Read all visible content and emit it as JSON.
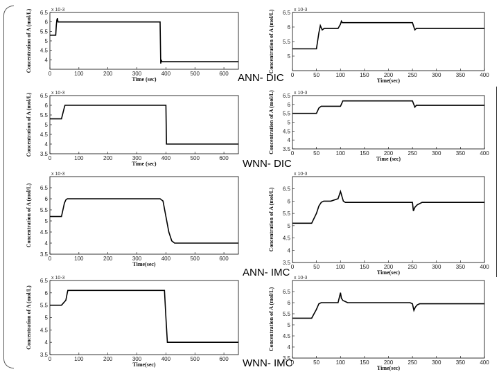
{
  "row_labels": [
    "ANN- DIC",
    "WNN- DIC",
    "ANN- IMC",
    "WNN- IMC"
  ],
  "chart_data": [
    {
      "type": "line",
      "ylabel": "Concentration of A (mol/L)",
      "xlabel": "Time (sec)",
      "multiplier": "x 10-3",
      "xlim": [
        0,
        650
      ],
      "ylim": [
        3.5,
        6.5
      ],
      "xticks": [
        0,
        100,
        200,
        300,
        400,
        500,
        600
      ],
      "yticks": [
        4,
        4.5,
        5,
        5.5,
        6,
        6.5
      ],
      "series": [
        {
          "x": [
            0,
            20,
            22,
            24,
            26,
            28,
            30,
            32,
            380,
            382,
            384,
            386,
            390,
            650
          ],
          "y": [
            5.3,
            5.3,
            5.8,
            6.1,
            6.2,
            6.0,
            6.0,
            6.0,
            6.0,
            3.8,
            4.0,
            3.9,
            3.9,
            3.9
          ]
        }
      ]
    },
    {
      "type": "line",
      "ylabel": "Concentration of A (mol/L)",
      "xlabel": "Time(sec)",
      "multiplier": "x 10-3",
      "xlim": [
        0,
        400
      ],
      "ylim": [
        4.5,
        6.5
      ],
      "xticks": [
        0,
        50,
        100,
        150,
        200,
        250,
        300,
        350,
        400
      ],
      "yticks": [
        5,
        5.5,
        6,
        6.5
      ],
      "series": [
        {
          "x": [
            0,
            50,
            55,
            58,
            62,
            66,
            80,
            95,
            100,
            102,
            104,
            106,
            110,
            250,
            255,
            258,
            262,
            400
          ],
          "y": [
            5.25,
            5.25,
            5.8,
            6.05,
            5.9,
            5.95,
            5.95,
            5.95,
            6.1,
            6.2,
            6.15,
            6.15,
            6.15,
            6.15,
            5.9,
            5.95,
            5.95,
            5.95
          ]
        }
      ]
    },
    {
      "type": "line",
      "ylabel": "Concentration of A (mol/L)",
      "xlabel": "Time (sec)",
      "multiplier": "x 10-3",
      "xlim": [
        0,
        650
      ],
      "ylim": [
        3.5,
        6.5
      ],
      "xticks": [
        0,
        100,
        200,
        300,
        400,
        500,
        600
      ],
      "yticks": [
        3.5,
        4,
        4.5,
        5,
        5.5,
        6,
        6.5
      ],
      "series": [
        {
          "x": [
            0,
            40,
            50,
            52,
            400,
            402,
            650
          ],
          "y": [
            5.3,
            5.3,
            5.9,
            6.0,
            6.0,
            4.0,
            4.0
          ]
        }
      ]
    },
    {
      "type": "line",
      "ylabel": "Concentration of A (mol/L)",
      "xlabel": "Time (sec)",
      "multiplier": "x 10-3",
      "xlim": [
        0,
        400
      ],
      "ylim": [
        3.5,
        6.5
      ],
      "xticks": [
        0,
        50,
        100,
        150,
        200,
        250,
        300,
        350,
        400
      ],
      "yticks": [
        3.5,
        4,
        4.5,
        5,
        5.5,
        6,
        6.5
      ],
      "series": [
        {
          "x": [
            0,
            50,
            55,
            60,
            100,
            105,
            110,
            250,
            255,
            258,
            400
          ],
          "y": [
            5.5,
            5.5,
            5.8,
            5.9,
            5.9,
            6.2,
            6.2,
            6.2,
            5.85,
            5.95,
            5.95
          ]
        }
      ]
    },
    {
      "type": "line",
      "ylabel": "Concentration of A (mol/L)",
      "xlabel": "Time(sec)",
      "multiplier": "x 10-3",
      "xlim": [
        0,
        650
      ],
      "ylim": [
        3.5,
        7
      ],
      "xticks": [
        0,
        100,
        200,
        300,
        400,
        500,
        600
      ],
      "yticks": [
        3.5,
        4,
        4.5,
        5,
        5.5,
        6,
        6.5
      ],
      "series": [
        {
          "x": [
            0,
            40,
            45,
            50,
            55,
            60,
            70,
            380,
            390,
            400,
            410,
            420,
            430,
            440,
            650
          ],
          "y": [
            5.2,
            5.2,
            5.5,
            5.8,
            5.95,
            6.0,
            6.0,
            6.0,
            5.9,
            5.2,
            4.5,
            4.1,
            4.0,
            4.0,
            4.0
          ]
        }
      ]
    },
    {
      "type": "line",
      "ylabel": "Concentration of A (mol/L)",
      "xlabel": "Time(sec)",
      "multiplier": "x 10-3",
      "xlim": [
        0,
        400
      ],
      "ylim": [
        3.5,
        7
      ],
      "xticks": [
        0,
        50,
        100,
        150,
        200,
        250,
        300,
        350,
        400
      ],
      "yticks": [
        3.5,
        4,
        4.5,
        5,
        5.5,
        6,
        6.5
      ],
      "series": [
        {
          "x": [
            0,
            40,
            50,
            55,
            60,
            65,
            70,
            80,
            95,
            100,
            103,
            106,
            110,
            115,
            120,
            200,
            250,
            252,
            255,
            260,
            265,
            270,
            400
          ],
          "y": [
            5.1,
            5.1,
            5.5,
            5.8,
            5.95,
            6.0,
            6.0,
            6.0,
            6.1,
            6.4,
            6.2,
            6.0,
            5.95,
            5.95,
            5.95,
            5.95,
            5.95,
            5.6,
            5.75,
            5.85,
            5.9,
            5.95,
            5.95
          ]
        }
      ]
    },
    {
      "type": "line",
      "ylabel": "Concentration of A (mol/L)",
      "xlabel": "Time(sec)",
      "multiplier": "x 10-3",
      "xlim": [
        0,
        650
      ],
      "ylim": [
        3.5,
        6.5
      ],
      "xticks": [
        0,
        100,
        200,
        300,
        400,
        500,
        600
      ],
      "yticks": [
        3.5,
        4,
        4.5,
        5,
        5.5,
        6,
        6.5
      ],
      "series": [
        {
          "x": [
            0,
            40,
            55,
            60,
            62,
            65,
            395,
            400,
            405,
            410,
            650
          ],
          "y": [
            5.5,
            5.5,
            5.7,
            6.0,
            6.1,
            6.1,
            6.1,
            5.0,
            4.0,
            4.0,
            4.0
          ]
        }
      ]
    },
    {
      "type": "line",
      "ylabel": "Concentration of A (mol/L)",
      "xlabel": "Time(sec)",
      "multiplier": "x 10-3",
      "xlim": [
        0,
        400
      ],
      "ylim": [
        3.5,
        7
      ],
      "xticks": [
        0,
        50,
        100,
        150,
        200,
        250,
        300,
        350,
        400
      ],
      "yticks": [
        3.5,
        4,
        4.5,
        5,
        5.5,
        6,
        6.5
      ],
      "series": [
        {
          "x": [
            0,
            40,
            50,
            55,
            60,
            65,
            95,
            100,
            102,
            105,
            110,
            115,
            120,
            245,
            250,
            253,
            256,
            260,
            265,
            400
          ],
          "y": [
            5.3,
            5.3,
            5.7,
            5.95,
            6.0,
            6.0,
            6.0,
            6.45,
            6.2,
            6.1,
            6.05,
            6.0,
            6.0,
            6.0,
            5.95,
            5.65,
            5.8,
            5.9,
            5.95,
            5.95
          ]
        }
      ]
    }
  ]
}
